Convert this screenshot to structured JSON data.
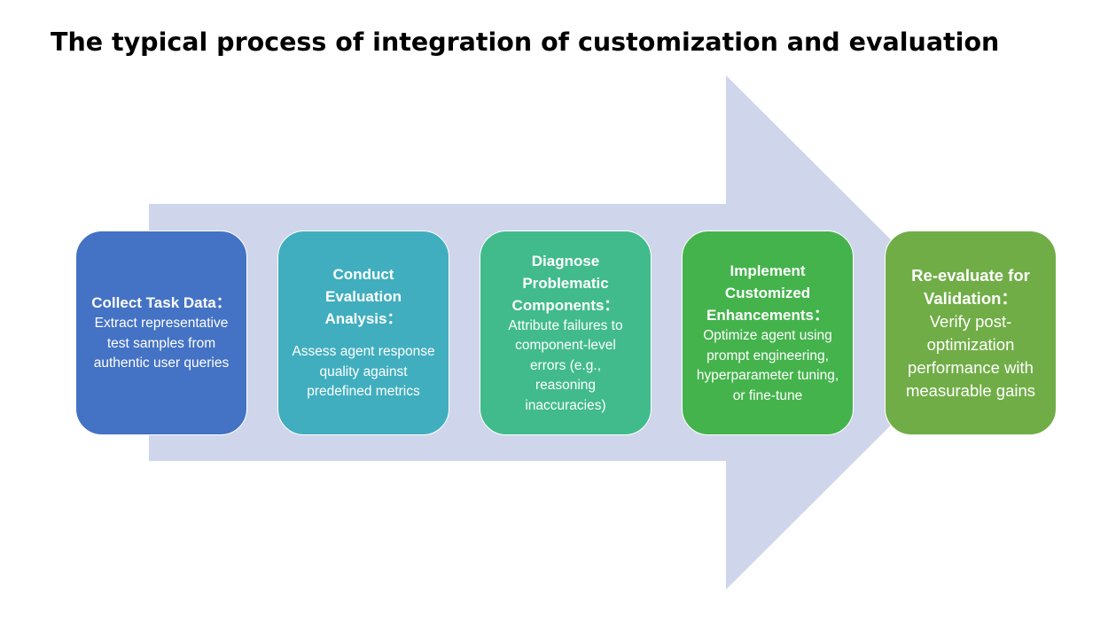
{
  "title": "The typical process of integration of customization and evaluation",
  "colors": {
    "arrow": "#cfd5eb",
    "step1": "#4472c4",
    "step2": "#40aebe",
    "step3": "#41bb8c",
    "step4": "#44b34c",
    "step5": "#70ad47"
  },
  "steps": [
    {
      "title": "Collect Task Data：",
      "desc": "Extract representative test samples from authentic user queries"
    },
    {
      "title": "Conduct Evaluation Analysis：",
      "desc": "Assess agent response quality against predefined metrics"
    },
    {
      "title": "Diagnose Problematic Components：",
      "desc": "Attribute failures to component-level errors (e.g., reasoning inaccuracies)"
    },
    {
      "title": "Implement Customized Enhancements：",
      "desc": "Optimize agent using prompt engineering, hyperparameter tuning, or fine-tune"
    },
    {
      "title": "Re-evaluate for Validation：",
      "desc": "Verify post-optimization performance with measurable gains"
    }
  ]
}
